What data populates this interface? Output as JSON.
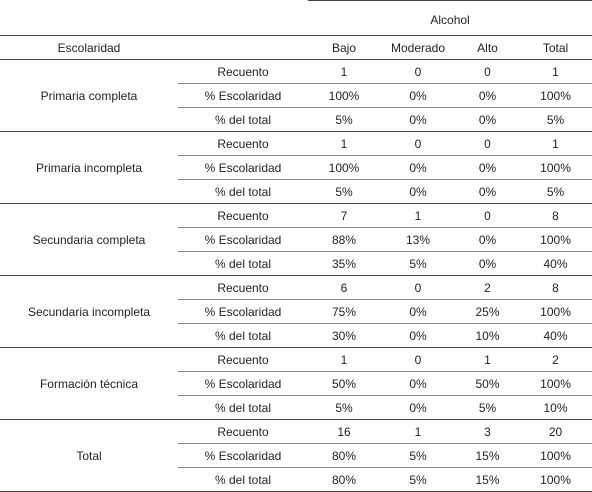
{
  "header": {
    "group_label": "Alcohol",
    "row_header": "Escolaridad",
    "columns": [
      "Bajo",
      "Moderado",
      "Alto",
      "Total"
    ]
  },
  "groups": [
    {
      "name": "Primaria completa",
      "rows": [
        {
          "label": "Recuento",
          "values": [
            "1",
            "0",
            "0",
            "1"
          ]
        },
        {
          "label": "% Escolaridad",
          "values": [
            "100%",
            "0%",
            "0%",
            "100%"
          ]
        },
        {
          "label": "% del total",
          "values": [
            "5%",
            "0%",
            "0%",
            "5%"
          ]
        }
      ]
    },
    {
      "name": "Primaria incompleta",
      "rows": [
        {
          "label": "Recuento",
          "values": [
            "1",
            "0",
            "0",
            "1"
          ]
        },
        {
          "label": "% Escolaridad",
          "values": [
            "100%",
            "0%",
            "0%",
            "100%"
          ]
        },
        {
          "label": "% del total",
          "values": [
            "5%",
            "0%",
            "0%",
            "5%"
          ]
        }
      ]
    },
    {
      "name": "Secundaria completa",
      "rows": [
        {
          "label": "Recuento",
          "values": [
            "7",
            "1",
            "0",
            "8"
          ]
        },
        {
          "label": "% Escolaridad",
          "values": [
            "88%",
            "13%",
            "0%",
            "100%"
          ]
        },
        {
          "label": "% del total",
          "values": [
            "35%",
            "5%",
            "0%",
            "40%"
          ]
        }
      ]
    },
    {
      "name": "Secundaria incompleta",
      "rows": [
        {
          "label": "Recuento",
          "values": [
            "6",
            "0",
            "2",
            "8"
          ]
        },
        {
          "label": "% Escolaridad",
          "values": [
            "75%",
            "0%",
            "25%",
            "100%"
          ]
        },
        {
          "label": "% del total",
          "values": [
            "30%",
            "0%",
            "10%",
            "40%"
          ]
        }
      ]
    },
    {
      "name": "Formación técnica",
      "rows": [
        {
          "label": "Recuento",
          "values": [
            "1",
            "0",
            "1",
            "2"
          ]
        },
        {
          "label": "% Escolaridad",
          "values": [
            "50%",
            "0%",
            "50%",
            "100%"
          ]
        },
        {
          "label": "% del total",
          "values": [
            "5%",
            "0%",
            "5%",
            "10%"
          ]
        }
      ]
    },
    {
      "name": "Total",
      "rows": [
        {
          "label": "Recuento",
          "values": [
            "16",
            "1",
            "3",
            "20"
          ]
        },
        {
          "label": "% Escolaridad",
          "values": [
            "80%",
            "5%",
            "15%",
            "100%"
          ]
        },
        {
          "label": "% del total",
          "values": [
            "80%",
            "5%",
            "15%",
            "100%"
          ]
        }
      ]
    }
  ]
}
